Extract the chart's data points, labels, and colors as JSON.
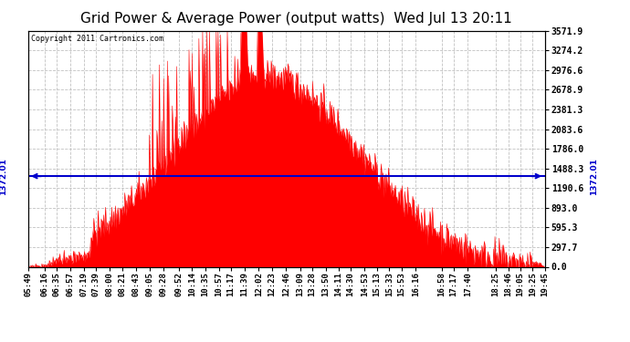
{
  "title": "Grid Power & Average Power (output watts)  Wed Jul 13 20:11",
  "copyright": "Copyright 2011 Cartronics.com",
  "avg_line_value": 1372.01,
  "avg_label": "1372.01",
  "y_max": 3571.9,
  "y_min": 0.0,
  "y_ticks": [
    0.0,
    297.7,
    595.3,
    893.0,
    1190.6,
    1488.3,
    1786.0,
    2083.6,
    2381.3,
    2678.9,
    2976.6,
    3274.2,
    3571.9
  ],
  "fill_color": "#FF0000",
  "line_color": "#FF0000",
  "avg_line_color": "#0000CC",
  "background_color": "#FFFFFF",
  "grid_color": "#BBBBBB",
  "title_fontsize": 11,
  "copyright_fontsize": 6,
  "tick_fontsize": 7,
  "x_labels": [
    "05:49",
    "06:16",
    "06:35",
    "06:57",
    "07:19",
    "07:39",
    "08:00",
    "08:21",
    "08:43",
    "09:05",
    "09:28",
    "09:52",
    "10:14",
    "10:35",
    "10:57",
    "11:17",
    "11:39",
    "12:02",
    "12:23",
    "12:46",
    "13:09",
    "13:28",
    "13:50",
    "14:11",
    "14:30",
    "14:53",
    "15:13",
    "15:33",
    "15:53",
    "16:16",
    "16:58",
    "17:17",
    "17:40",
    "18:25",
    "18:46",
    "19:05",
    "19:25",
    "19:45"
  ]
}
